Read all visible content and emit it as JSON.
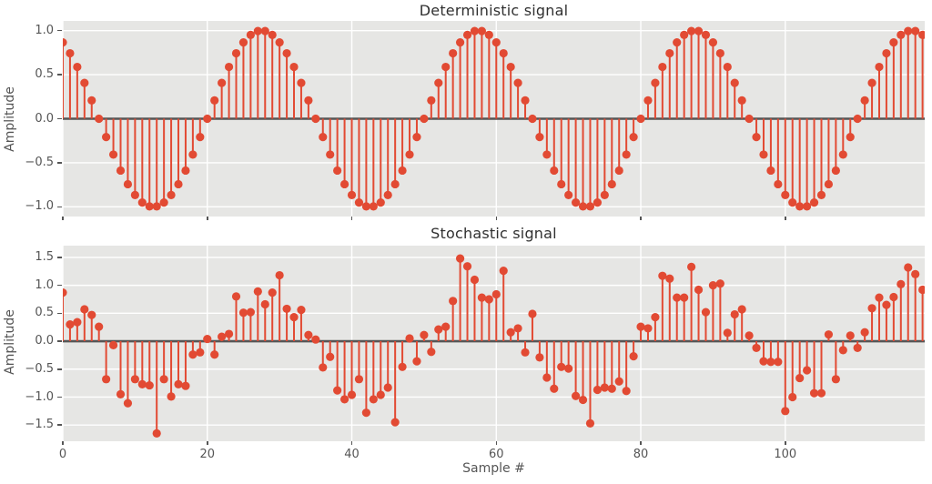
{
  "figure": {
    "accent_color": "#e24a33",
    "axes_background": "#e6e6e4",
    "grid_color": "#ffffff",
    "baseline_color": "#555555",
    "tick_text_color": "#555555",
    "title_color": "#303030"
  },
  "chart_data": [
    {
      "type": "stem",
      "title": "Deterministic signal",
      "ylabel": "Amplitude",
      "xlabel": "",
      "xlim": [
        0,
        119.3
      ],
      "ylim": [
        -1.11,
        1.11
      ],
      "yticks": [
        1.0,
        0.5,
        0.0,
        -0.5,
        -1.0
      ],
      "ytick_labels": [
        "1.0",
        "0.5",
        "0.0",
        "−0.5",
        "−1.0"
      ],
      "xticks": [
        0,
        20,
        40,
        60,
        80,
        100
      ],
      "xtick_labels": [],
      "grid": true,
      "x": "sample index 0..119",
      "values": [
        0.866,
        0.743,
        0.588,
        0.407,
        0.208,
        0.0,
        -0.208,
        -0.407,
        -0.588,
        -0.743,
        -0.866,
        -0.951,
        -0.995,
        -0.995,
        -0.951,
        -0.866,
        -0.743,
        -0.588,
        -0.407,
        -0.208,
        0.0,
        0.208,
        0.407,
        0.588,
        0.743,
        0.866,
        0.951,
        0.995,
        0.995,
        0.951,
        0.866,
        0.743,
        0.588,
        0.407,
        0.208,
        0.0,
        -0.208,
        -0.407,
        -0.588,
        -0.743,
        -0.866,
        -0.951,
        -0.995,
        -0.995,
        -0.951,
        -0.866,
        -0.743,
        -0.588,
        -0.407,
        -0.208,
        0.0,
        0.208,
        0.407,
        0.588,
        0.743,
        0.866,
        0.951,
        0.995,
        0.995,
        0.951,
        0.866,
        0.743,
        0.588,
        0.407,
        0.208,
        0.0,
        -0.208,
        -0.407,
        -0.588,
        -0.743,
        -0.866,
        -0.951,
        -0.995,
        -0.995,
        -0.951,
        -0.866,
        -0.743,
        -0.588,
        -0.407,
        -0.208,
        0.0,
        0.208,
        0.407,
        0.588,
        0.743,
        0.866,
        0.951,
        0.995,
        0.995,
        0.951,
        0.866,
        0.743,
        0.588,
        0.407,
        0.208,
        0.0,
        -0.208,
        -0.407,
        -0.588,
        -0.743,
        -0.866,
        -0.951,
        -0.995,
        -0.995,
        -0.951,
        -0.866,
        -0.743,
        -0.588,
        -0.407,
        -0.208,
        0.0,
        0.208,
        0.407,
        0.588,
        0.743,
        0.866,
        0.951,
        0.995,
        0.995,
        0.951
      ]
    },
    {
      "type": "stem",
      "title": "Stochastic signal",
      "ylabel": "Amplitude",
      "xlabel": "Sample #",
      "xlim": [
        0,
        119.3
      ],
      "ylim": [
        -1.79,
        1.71
      ],
      "yticks": [
        1.5,
        1.0,
        0.5,
        0.0,
        -0.5,
        -1.0,
        -1.5
      ],
      "ytick_labels": [
        "1.5",
        "1.0",
        "0.5",
        "0.0",
        "−0.5",
        "−1.0",
        "−1.5"
      ],
      "xticks": [
        0,
        20,
        40,
        60,
        80,
        100
      ],
      "xtick_labels": [
        "0",
        "20",
        "40",
        "60",
        "80",
        "100"
      ],
      "grid": true,
      "x": "sample index 0..119",
      "values": [
        0.87,
        0.3,
        0.34,
        0.57,
        0.47,
        0.26,
        -0.68,
        -0.07,
        -0.95,
        -1.11,
        -0.68,
        -0.77,
        -0.79,
        -1.65,
        -0.68,
        -0.99,
        -0.77,
        -0.8,
        -0.24,
        -0.2,
        0.04,
        -0.24,
        0.08,
        0.13,
        0.8,
        0.51,
        0.52,
        0.89,
        0.66,
        0.87,
        1.18,
        0.58,
        0.43,
        0.56,
        0.11,
        0.03,
        -0.47,
        -0.28,
        -0.88,
        -1.04,
        -0.96,
        -0.68,
        -1.28,
        -1.04,
        -0.96,
        -0.83,
        -1.45,
        -0.46,
        0.05,
        -0.36,
        0.11,
        -0.19,
        0.21,
        0.26,
        0.72,
        1.48,
        1.34,
        1.1,
        0.78,
        0.75,
        0.84,
        1.26,
        0.16,
        0.23,
        -0.2,
        0.49,
        -0.29,
        -0.65,
        -0.85,
        -0.46,
        -0.49,
        -0.98,
        -1.05,
        -1.47,
        -0.87,
        -0.83,
        -0.85,
        -0.72,
        -0.89,
        -0.27,
        0.26,
        0.23,
        0.43,
        1.17,
        1.12,
        0.78,
        0.78,
        1.33,
        0.92,
        0.52,
        1.0,
        1.03,
        0.15,
        0.48,
        0.57,
        0.1,
        -0.12,
        -0.36,
        -0.37,
        -0.37,
        -1.25,
        -1.0,
        -0.66,
        -0.52,
        -0.93,
        -0.93,
        0.12,
        -0.68,
        -0.16,
        0.1,
        -0.12,
        0.16,
        0.59,
        0.78,
        0.65,
        0.79,
        1.02,
        1.32,
        1.2,
        0.92
      ]
    }
  ]
}
